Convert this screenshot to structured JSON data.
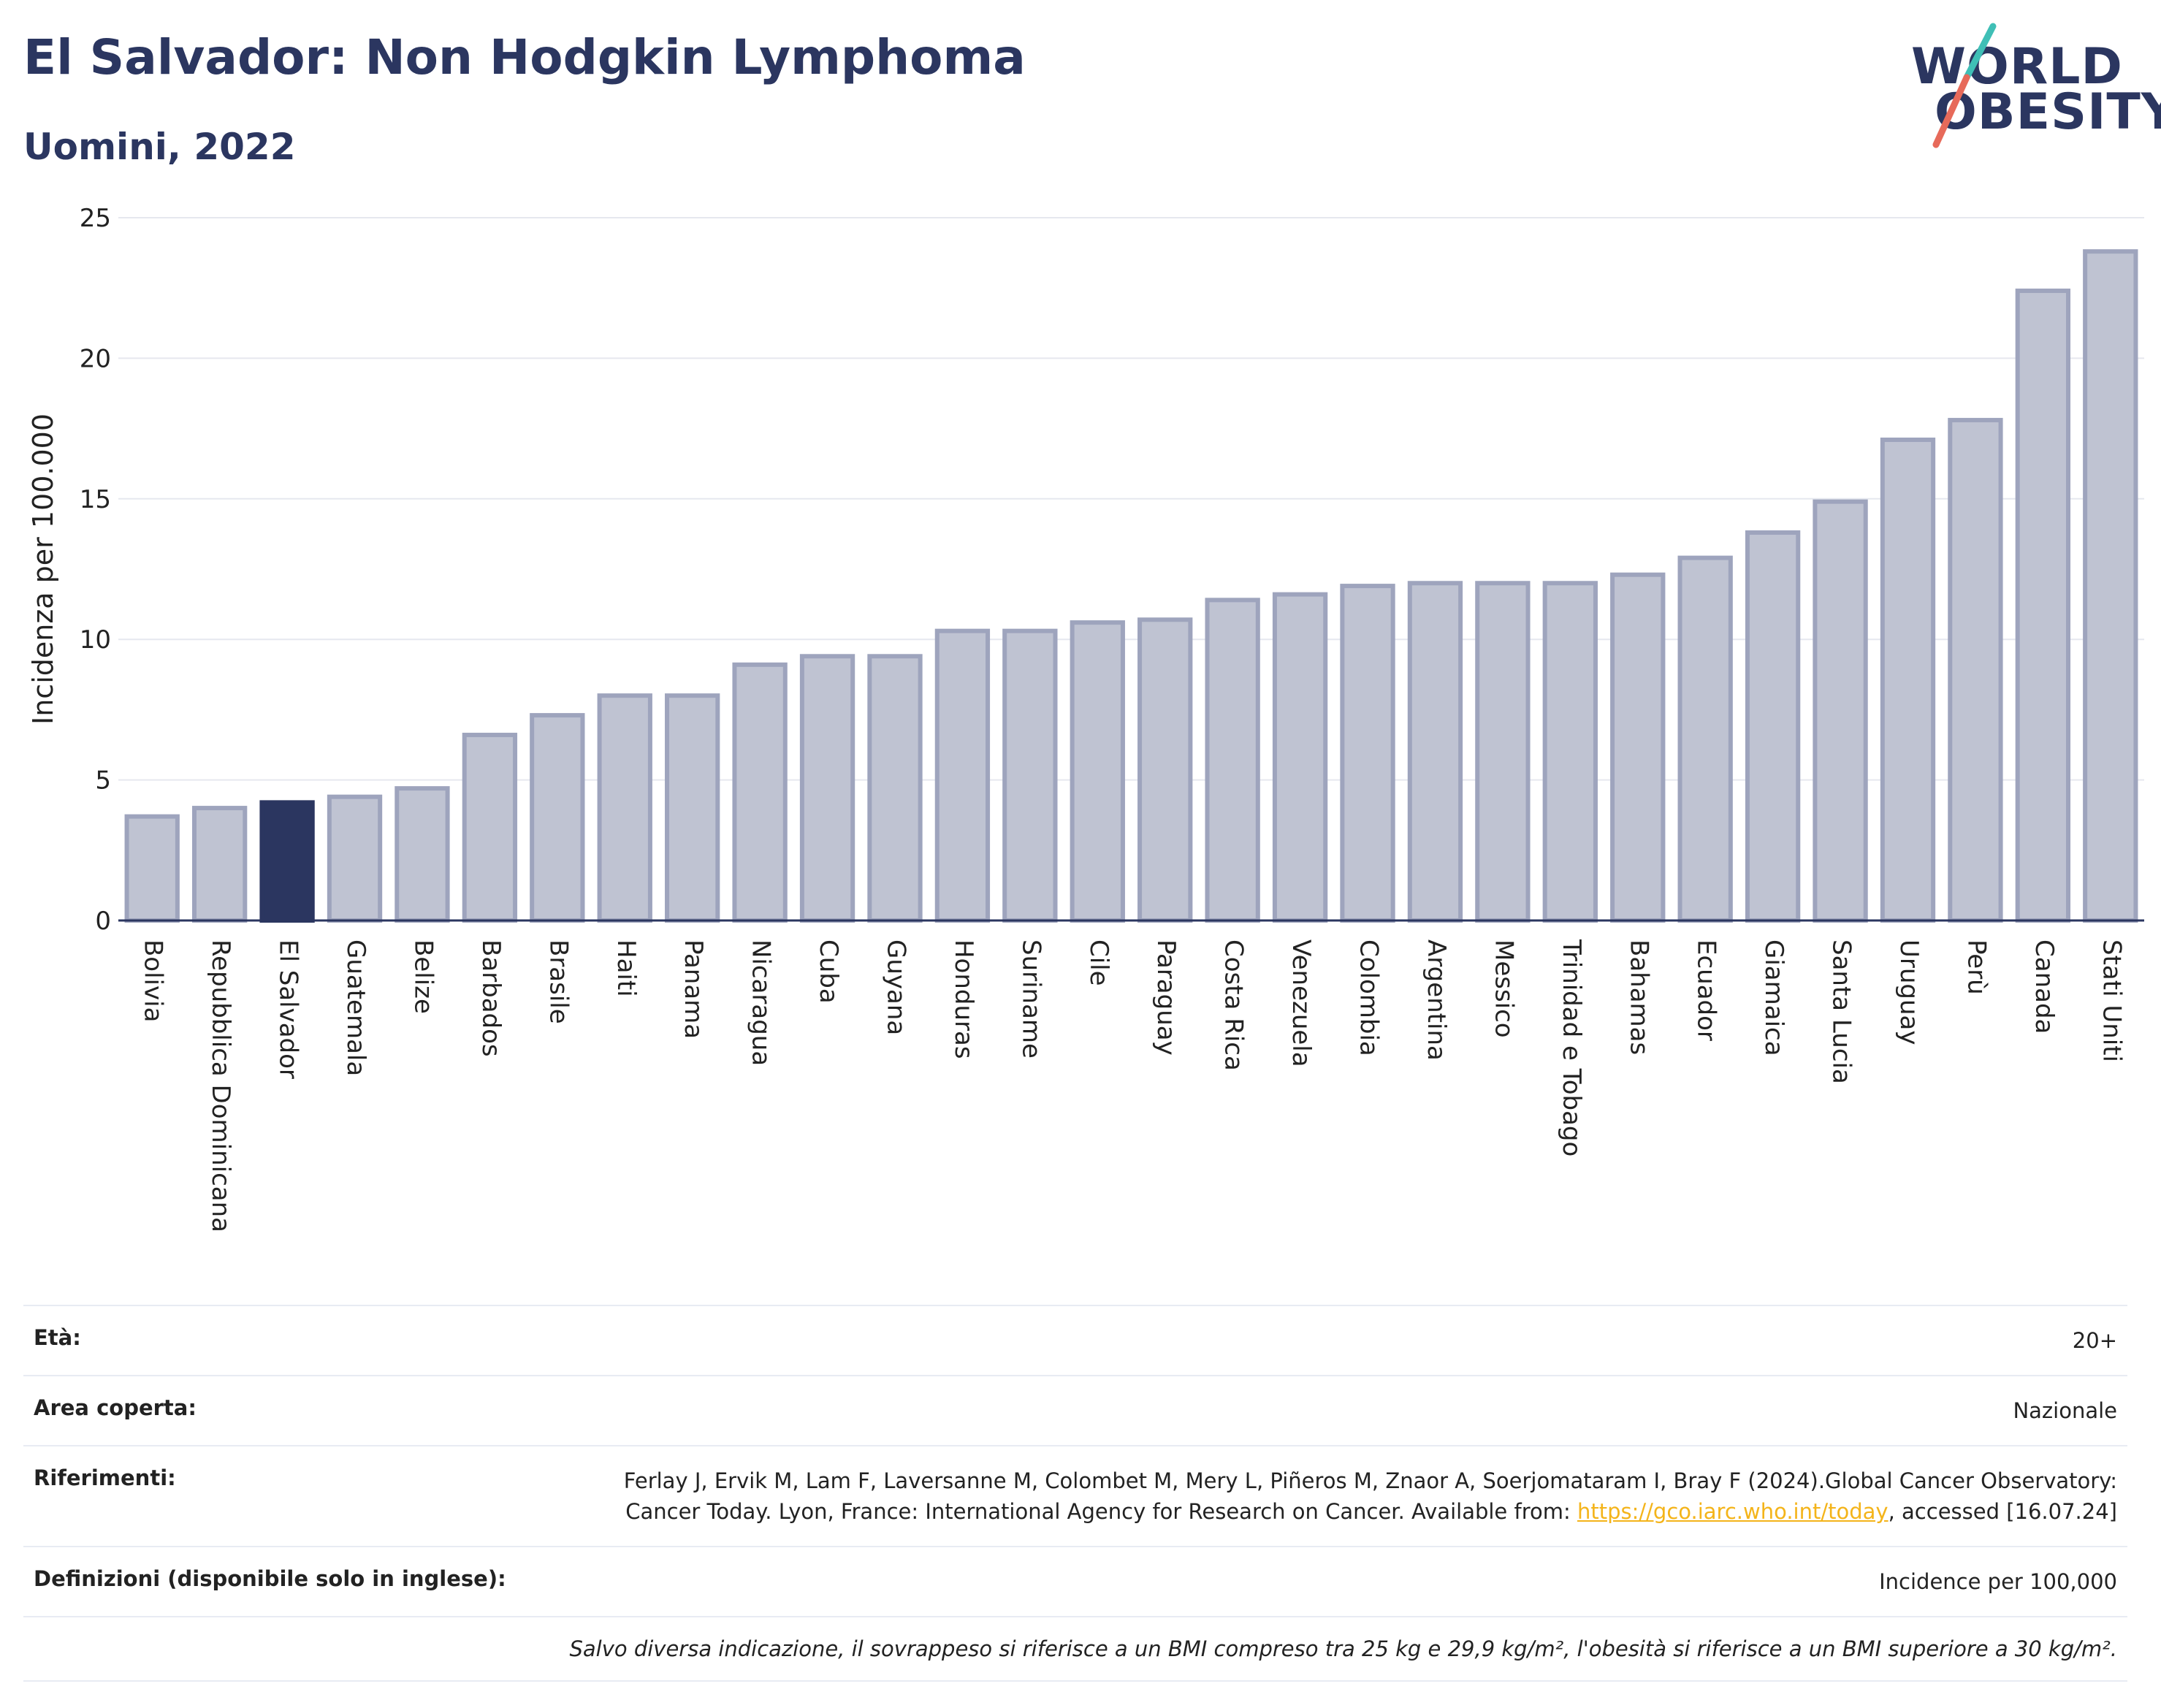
{
  "header": {
    "title": "El Salvador: Non Hodgkin Lymphoma",
    "subtitle": "Uomini, 2022"
  },
  "logo": {
    "line1": "WORLD",
    "line2": "OBESITY"
  },
  "colors": {
    "highlight": "#2b3660",
    "bar_fill": "#bfc3d2",
    "bar_stroke": "#9ea4bd",
    "accent_teal": "#3fbfb6",
    "accent_coral": "#e76a5a"
  },
  "chart_data": {
    "type": "bar",
    "title": "El Salvador: Non Hodgkin Lymphoma",
    "subtitle": "Uomini, 2022",
    "xlabel": "",
    "ylabel": "Incidenza per 100.000",
    "ylim": [
      0,
      25
    ],
    "yticks": [
      0,
      5,
      10,
      15,
      20,
      25
    ],
    "grid": true,
    "highlight": "El Salvador",
    "categories": [
      "Bolivia",
      "Repubblica Dominicana",
      "El Salvador",
      "Guatemala",
      "Belize",
      "Barbados",
      "Brasile",
      "Haiti",
      "Panama",
      "Nicaragua",
      "Cuba",
      "Guyana",
      "Honduras",
      "Suriname",
      "Cile",
      "Paraguay",
      "Costa Rica",
      "Venezuela",
      "Colombia",
      "Argentina",
      "Messico",
      "Trinidad e Tobago",
      "Bahamas",
      "Ecuador",
      "Giamaica",
      "Santa Lucia",
      "Uruguay",
      "Perù",
      "Canada",
      "Stati Uniti"
    ],
    "values": [
      3.7,
      4.0,
      4.2,
      4.4,
      4.7,
      6.6,
      7.3,
      8.0,
      8.0,
      9.1,
      9.4,
      9.4,
      10.3,
      10.3,
      10.6,
      10.7,
      11.4,
      11.6,
      11.9,
      12.0,
      12.0,
      12.0,
      12.3,
      12.9,
      13.8,
      14.9,
      17.1,
      17.8,
      22.4,
      23.8
    ]
  },
  "info": {
    "age_label": "Età:",
    "age_value": "20+",
    "area_label": "Area coperta:",
    "area_value": "Nazionale",
    "refs_label": "Riferimenti:",
    "refs_text_1": "Ferlay J, Ervik M, Lam F, Laversanne M, Colombet M, Mery L, Piñeros M, Znaor A, Soerjomataram I, Bray F (2024).Global Cancer Observatory: Cancer Today. Lyon, France: International Agency for Research on Cancer. Available from: ",
    "refs_link": "https://gco.iarc.who.int/today",
    "refs_text_2": ", accessed [16.07.24]",
    "defs_label": "Definizioni (disponibile solo in inglese):",
    "defs_value": "Incidence per 100,000",
    "note": "Salvo diversa indicazione, il sovrappeso si riferisce a un BMI compreso tra 25 kg e 29,9 kg/m², l'obesità si riferisce a un BMI superiore a 30 kg/m²."
  }
}
